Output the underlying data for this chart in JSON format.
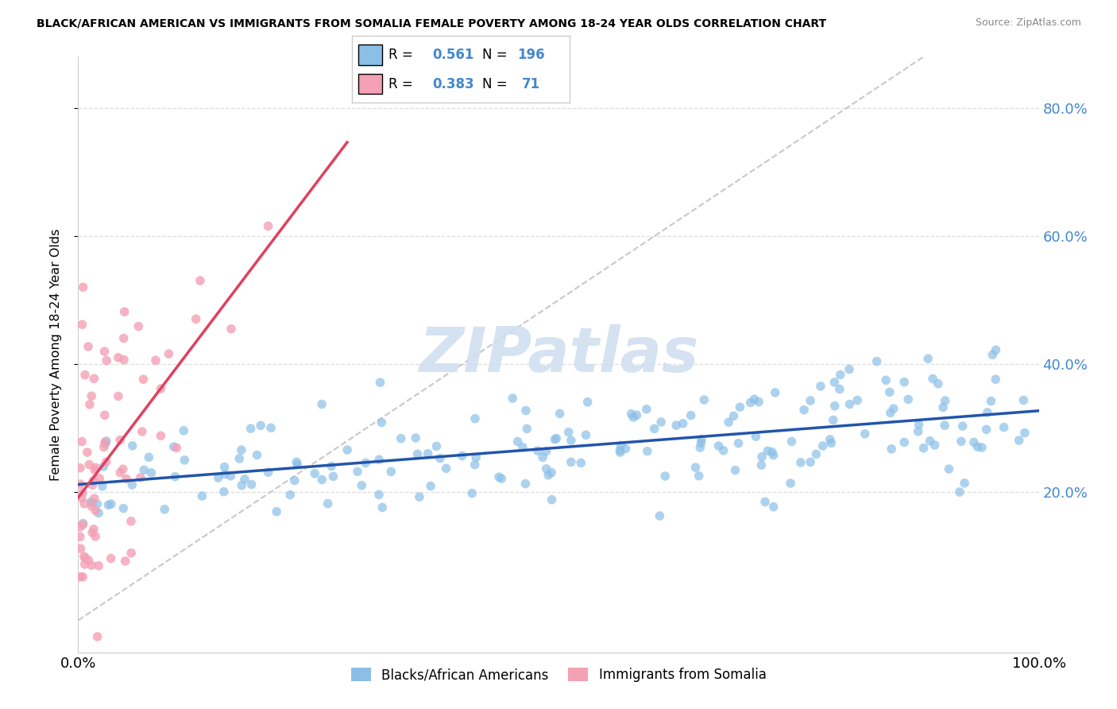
{
  "title": "BLACK/AFRICAN AMERICAN VS IMMIGRANTS FROM SOMALIA FEMALE POVERTY AMONG 18-24 YEAR OLDS CORRELATION CHART",
  "source": "Source: ZipAtlas.com",
  "ylabel": "Female Poverty Among 18-24 Year Olds",
  "xlim": [
    0.0,
    1.0
  ],
  "ylim": [
    -0.05,
    0.88
  ],
  "ytick_vals": [
    0.2,
    0.4,
    0.6,
    0.8
  ],
  "ytick_labels": [
    "20.0%",
    "40.0%",
    "60.0%",
    "80.0%"
  ],
  "xtick_vals": [
    0.0,
    1.0
  ],
  "xtick_labels": [
    "0.0%",
    "100.0%"
  ],
  "blue_R": 0.561,
  "blue_N": 196,
  "pink_R": 0.383,
  "pink_N": 71,
  "blue_color": "#8BBFE8",
  "pink_color": "#F4A0B5",
  "blue_line_color": "#2255AA",
  "pink_line_color": "#E04060",
  "diagonal_color": "#BBBBBB",
  "watermark_color": "#D0DFF0",
  "background_color": "#FFFFFF",
  "grid_color": "#DDDDDD",
  "tick_label_color": "#4488CC",
  "blue_seed": 12345,
  "pink_seed": 67890
}
